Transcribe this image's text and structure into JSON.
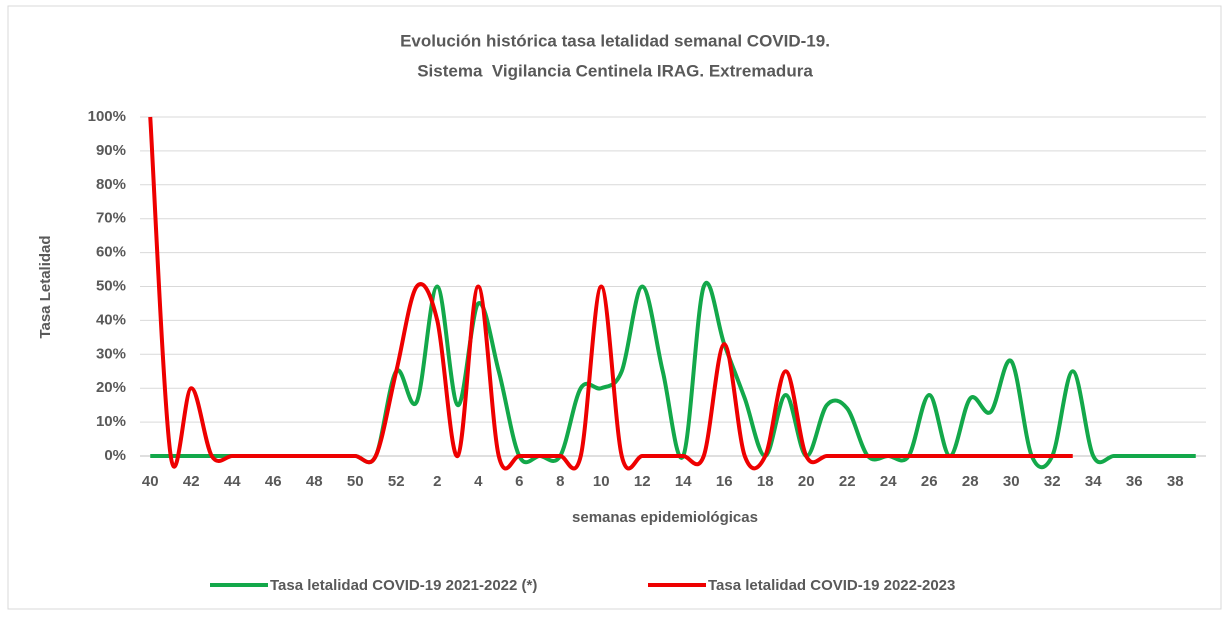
{
  "chart_data": {
    "type": "line",
    "title": [
      "Evolución histórica tasa letalidad semanal COVID-19.",
      "Sistema  Vigilancia Centinela IRAG. Extremadura"
    ],
    "x_label": "semanas epidemiológicas",
    "y_label": "Tasa Letalidad",
    "categories": [
      "40",
      null,
      "42",
      null,
      "44",
      null,
      "46",
      null,
      "48",
      null,
      "50",
      null,
      "52",
      null,
      "2",
      null,
      "4",
      null,
      "6",
      null,
      "8",
      null,
      "10",
      null,
      "12",
      null,
      "14",
      null,
      "16",
      null,
      "18",
      null,
      "20",
      null,
      "22",
      null,
      "24",
      null,
      "26",
      null,
      "28",
      null,
      "30",
      null,
      "32",
      null,
      "34",
      null,
      "36",
      null,
      "38",
      null
    ],
    "series": [
      {
        "name": "Tasa letalidad COVID-19 2021-2022 (*)",
        "color": "#13a84a",
        "values": [
          0,
          0,
          0,
          0,
          0,
          0,
          0,
          0,
          0,
          0,
          0,
          0,
          25,
          16,
          50,
          15,
          45,
          25,
          0,
          0,
          0,
          20,
          20,
          25,
          50,
          25,
          0,
          50,
          33,
          17,
          0,
          18,
          0,
          15,
          14,
          0,
          0,
          0,
          18,
          0,
          17,
          13,
          28,
          0,
          0,
          25,
          0,
          0,
          0,
          0,
          0,
          0
        ]
      },
      {
        "name": "Tasa letalidad COVID-19 2022-2023",
        "color": "#ee0000",
        "values": [
          100,
          0,
          20,
          0,
          0,
          0,
          0,
          0,
          0,
          0,
          0,
          0,
          25,
          50,
          40,
          0,
          50,
          0,
          0,
          0,
          0,
          0,
          50,
          0,
          0,
          0,
          0,
          0,
          33,
          0,
          0,
          25,
          0,
          0,
          0,
          0,
          0,
          0,
          0,
          0,
          0,
          0,
          0,
          0,
          0,
          0,
          null,
          null,
          null,
          null,
          null,
          null
        ]
      }
    ],
    "ylim": [
      0,
      100
    ],
    "yticks": [
      {
        "value": 0,
        "label": "0%"
      },
      {
        "value": 10,
        "label": "10%"
      },
      {
        "value": 20,
        "label": "20%"
      },
      {
        "value": 30,
        "label": "30%"
      },
      {
        "value": 40,
        "label": "40%"
      },
      {
        "value": 50,
        "label": "50%"
      },
      {
        "value": 60,
        "label": "60%"
      },
      {
        "value": 70,
        "label": "70%"
      },
      {
        "value": 80,
        "label": "80%"
      },
      {
        "value": 90,
        "label": "90%"
      },
      {
        "value": 100,
        "label": "100%"
      }
    ],
    "grid": true,
    "legend": "bottom"
  }
}
